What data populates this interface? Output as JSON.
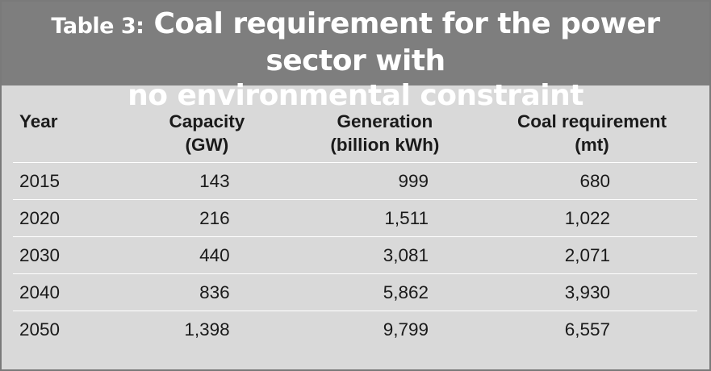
{
  "table": {
    "title_label": "Table 3:",
    "title_line1": "Coal requirement for the power sector with",
    "title_line2": "no environmental constraint",
    "headers": [
      {
        "line1": "Year",
        "line2": ""
      },
      {
        "line1": "Capacity",
        "line2": "(GW)"
      },
      {
        "line1": "Generation",
        "line2": "(billion kWh)"
      },
      {
        "line1": "Coal requirement",
        "line2": "(mt)"
      }
    ],
    "rows": [
      {
        "year": "2015",
        "capacity": "143",
        "generation": "999",
        "coal": "680"
      },
      {
        "year": "2020",
        "capacity": "216",
        "generation": "1,511",
        "coal": "1,022"
      },
      {
        "year": "2030",
        "capacity": "440",
        "generation": "3,081",
        "coal": "2,071"
      },
      {
        "year": "2040",
        "capacity": "836",
        "generation": "5,862",
        "coal": "3,930"
      },
      {
        "year": "2050",
        "capacity": "1,398",
        "generation": "9,799",
        "coal": "6,557"
      }
    ]
  },
  "colors": {
    "header_background": "#7e7e7e",
    "panel_background": "#d9d9d9",
    "row_divider": "#ffffff"
  }
}
